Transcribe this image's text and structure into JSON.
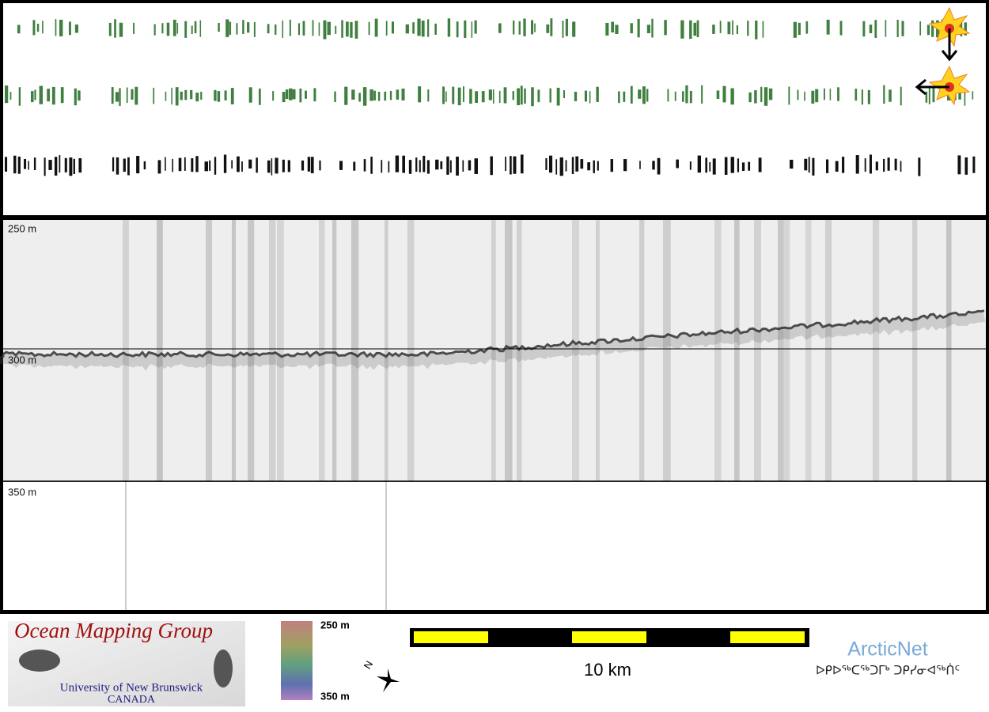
{
  "echogram": {
    "depth_labels": [
      "250 m",
      "300 m",
      "350 m"
    ]
  },
  "logo": {
    "title": "Ocean Mapping Group",
    "subtitle": "University of New Brunswick",
    "country": "CANADA"
  },
  "colorbar": {
    "top_label": "250 m",
    "bottom_label": "350 m"
  },
  "compass": {
    "label": "N"
  },
  "scale_bar": {
    "label": "10 km"
  },
  "partner": {
    "name": "ArcticNet",
    "syllabics": "ᐅᑭᐅᖅᑕᖅᑐᒥᒃ ᑐᑭᓯᓂᐊᖅᑏᑦ"
  }
}
